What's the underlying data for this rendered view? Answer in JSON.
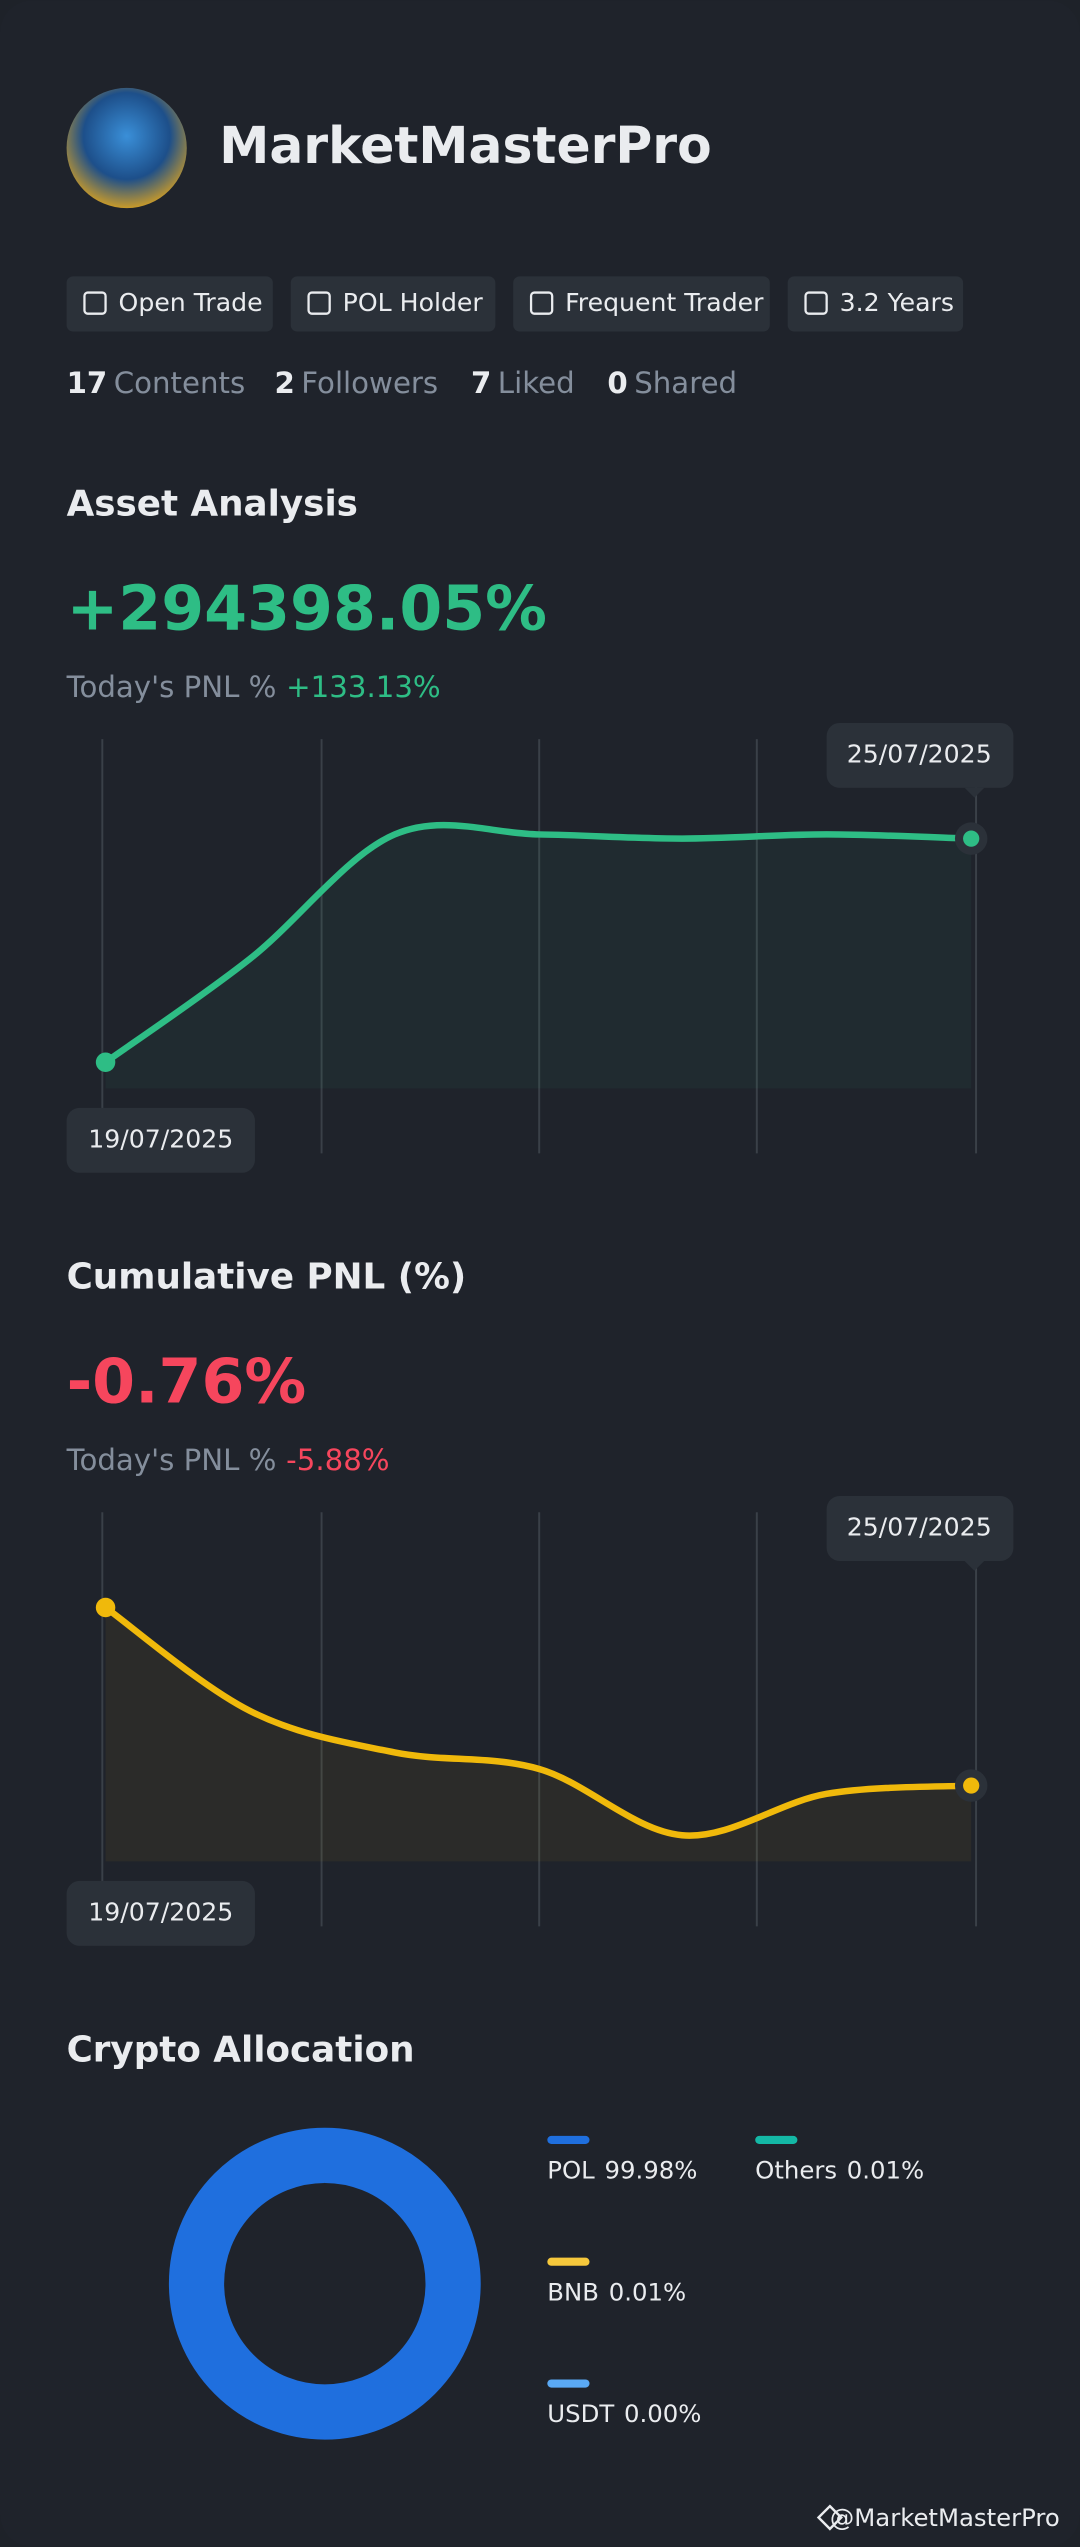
{
  "profile": {
    "username": "MarketMasterPro"
  },
  "badges": [
    "Open Trade",
    "POL Holder",
    "Frequent Trader",
    "3.2 Years"
  ],
  "stats": [
    {
      "value": 17,
      "label": "Contents"
    },
    {
      "value": 2,
      "label": "Followers"
    },
    {
      "value": 7,
      "label": "Liked"
    },
    {
      "value": 0,
      "label": "Shared"
    }
  ],
  "chart_data": [
    {
      "type": "line",
      "title": "Asset Analysis",
      "headline": "+294398.05%",
      "pnl_label": "Today's PNL %",
      "pnl": "+133.13%",
      "categories": [
        "19/07/2025",
        null,
        null,
        null,
        null,
        null,
        "25/07/2025"
      ],
      "values": [
        22,
        47,
        77,
        77,
        76,
        77,
        76
      ],
      "ylim": [
        0,
        100
      ],
      "color": "#2ebd85"
    },
    {
      "type": "line",
      "title": "Cumulative PNL (%)",
      "headline": "-0.76%",
      "pnl_label": "Today's PNL %",
      "pnl": "-5.88%",
      "categories": [
        "19/07/2025",
        null,
        null,
        null,
        null,
        null,
        "25/07/2025"
      ],
      "values": [
        77,
        52,
        42,
        38,
        22,
        32,
        34
      ],
      "ylim": [
        0,
        100
      ],
      "color": "#f0b90b"
    },
    {
      "type": "pie",
      "title": "Crypto Allocation",
      "categories": [
        "POL",
        "Others",
        "BNB",
        "USDT"
      ],
      "values": [
        99.98,
        0.01,
        0.01,
        0.0
      ],
      "value_labels": [
        "99.98%",
        "0.01%",
        "0.01%",
        "0.00%"
      ],
      "colors": [
        "#1f6fde",
        "#14b8a6",
        "#f6c83c",
        "#5aa9f5"
      ]
    }
  ],
  "footer": {
    "watermark": "@MarketMasterPro"
  }
}
